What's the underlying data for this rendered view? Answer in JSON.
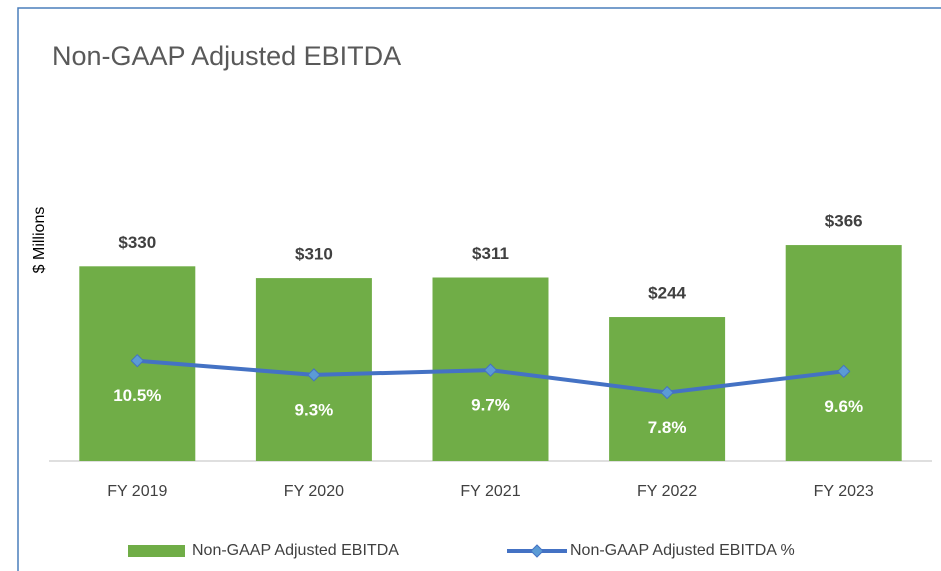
{
  "chart_data": {
    "type": "combo",
    "title": "Non-GAAP Adjusted EBITDA",
    "y_label": "$ Millions",
    "categories": [
      "FY 2019",
      "FY 2020",
      "FY 2021",
      "FY 2022",
      "FY 2023"
    ],
    "series": [
      {
        "name": "Non-GAAP Adjusted EBITDA",
        "type": "bar",
        "color": "#70ad47",
        "axis": "y",
        "values": [
          330,
          310,
          311,
          244,
          366
        ],
        "value_labels": [
          "$330",
          "$310",
          "$311",
          "$244",
          "$366"
        ]
      },
      {
        "name": "Non-GAAP Adjusted EBITDA %",
        "type": "line",
        "color": "#4472c4",
        "axis": "y2",
        "values": [
          10.5,
          9.3,
          9.7,
          7.8,
          9.6
        ],
        "value_labels": [
          "10.5%",
          "9.3%",
          "9.7%",
          "7.8%",
          "9.6%"
        ]
      }
    ],
    "ylim": [
      0,
      400
    ],
    "y2lim": [
      2,
      22
    ],
    "legend": "bottom"
  }
}
